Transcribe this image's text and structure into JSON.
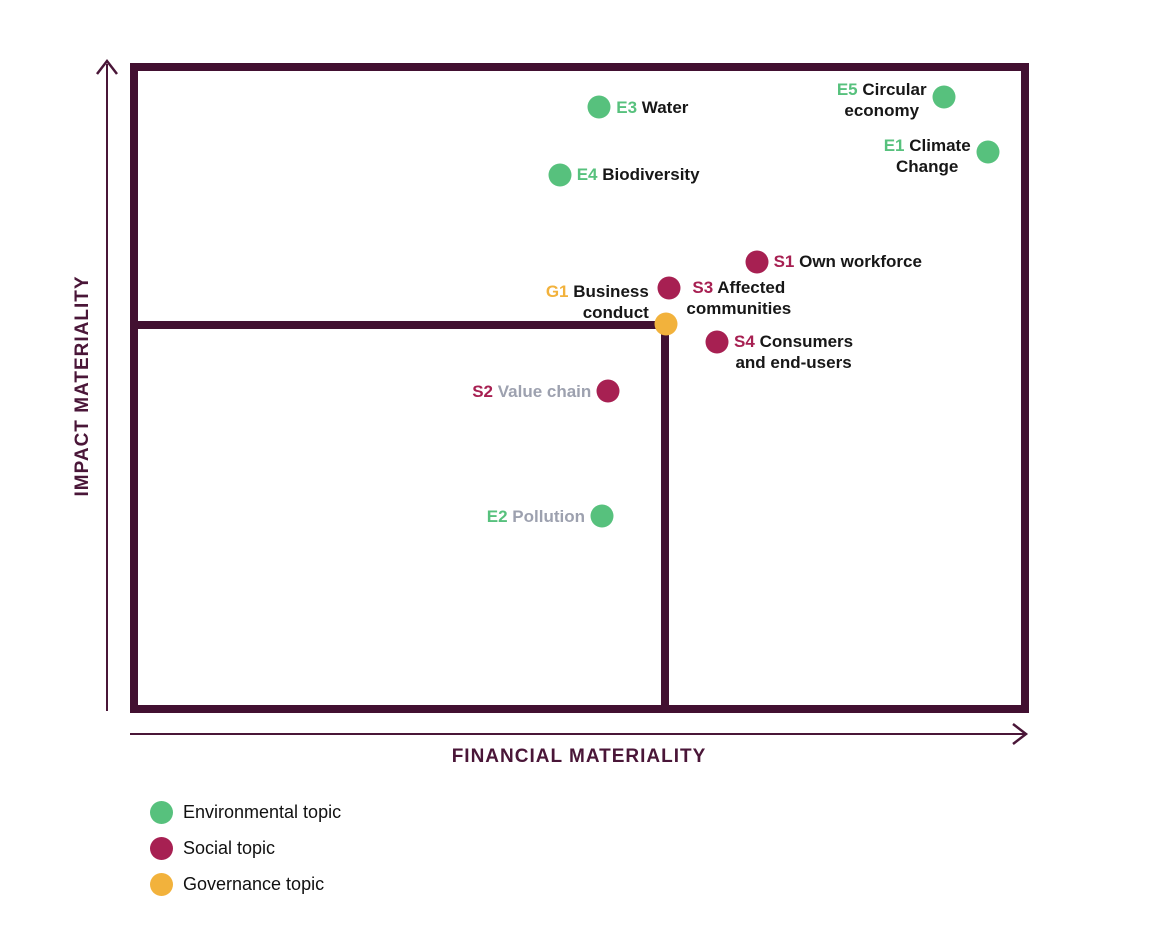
{
  "colors": {
    "environmental": "#57C17D",
    "social": "#A72052",
    "governance": "#F2B23C",
    "frame": "#421031",
    "axis": "#4A1638",
    "label_text": "#171717",
    "muted_text": "#9DA1AF"
  },
  "chart_data": {
    "type": "scatter",
    "xlabel": "FINANCIAL MATERIALITY",
    "ylabel": "IMPACT MATERIALITY",
    "x_range": [
      0,
      1
    ],
    "y_range": [
      0,
      1
    ],
    "grid": false,
    "legend_position": "bottom-left",
    "threshold_box": {
      "x": 0.595,
      "y": 0.597,
      "note": "inner frame marks the below-threshold bottom-left quadrant; G1 sits on its corner"
    },
    "points": [
      {
        "id": "E3",
        "name": "Water",
        "category": "environmental",
        "x": 0.522,
        "y": 0.932,
        "label_side": "right",
        "label_lines": [
          "Water"
        ]
      },
      {
        "id": "E5",
        "name": "Circular economy",
        "category": "environmental",
        "x": 0.905,
        "y": 0.948,
        "label_side": "left",
        "label_align": "center",
        "label_lines": [
          "Circular",
          "economy"
        ],
        "label_dy": -7
      },
      {
        "id": "E1",
        "name": "Climate Change",
        "category": "environmental",
        "x": 0.954,
        "y": 0.863,
        "label_side": "left",
        "label_align": "center",
        "label_lines": [
          "Climate",
          "Change"
        ],
        "label_dy": -7
      },
      {
        "id": "E4",
        "name": "Biodiversity",
        "category": "environmental",
        "x": 0.478,
        "y": 0.828,
        "label_side": "right",
        "label_lines": [
          "Biodiversity"
        ]
      },
      {
        "id": "S1",
        "name": "Own workforce",
        "category": "social",
        "x": 0.697,
        "y": 0.694,
        "label_side": "right",
        "label_lines": [
          "Own workforce"
        ]
      },
      {
        "id": "S3",
        "name": "Affected communities",
        "category": "social",
        "x": 0.6,
        "y": 0.654,
        "label_side": "right",
        "label_align": "center",
        "label_lines": [
          "Affected",
          "communities"
        ]
      },
      {
        "id": "G1",
        "name": "Business conduct",
        "category": "governance",
        "x": 0.596,
        "y": 0.598,
        "label_side": "left",
        "label_align": "right",
        "label_lines": [
          "Business",
          "conduct"
        ],
        "label_dy": -33
      },
      {
        "id": "S4",
        "name": "Consumers and end-users",
        "category": "social",
        "x": 0.653,
        "y": 0.571,
        "label_side": "right",
        "label_align": "center",
        "label_lines": [
          "Consumers",
          "and end-users"
        ]
      },
      {
        "id": "S2",
        "name": "Value chain",
        "category": "social",
        "x": 0.532,
        "y": 0.495,
        "label_side": "left",
        "label_lines": [
          "Value chain"
        ],
        "muted": true
      },
      {
        "id": "E2",
        "name": "Pollution",
        "category": "environmental",
        "x": 0.525,
        "y": 0.303,
        "label_side": "left",
        "label_lines": [
          "Pollution"
        ],
        "muted": true
      }
    ],
    "legend": [
      {
        "label": "Environmental topic",
        "category": "environmental"
      },
      {
        "label": "Social topic",
        "category": "social"
      },
      {
        "label": "Governance topic",
        "category": "governance"
      }
    ]
  }
}
